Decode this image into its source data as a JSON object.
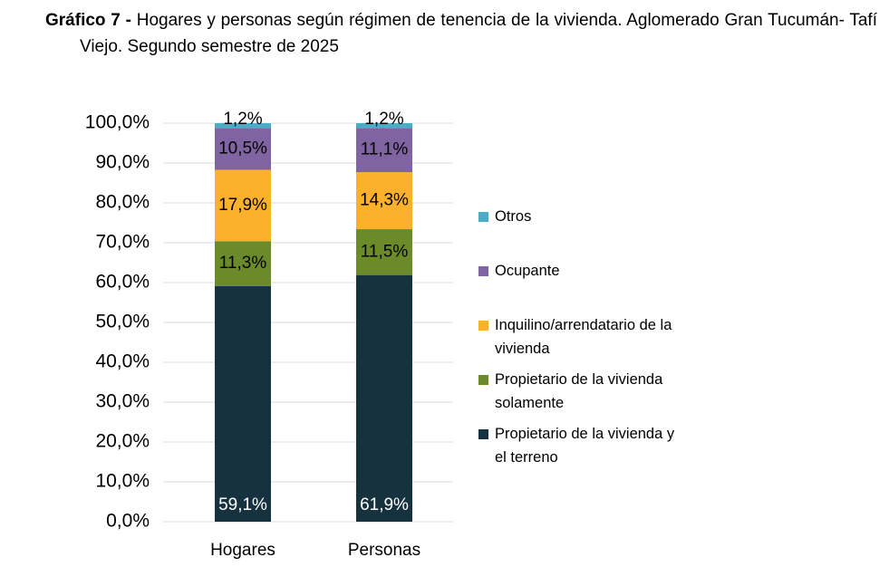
{
  "chart_data": {
    "type": "stacked_bar",
    "figure_label": "Gráfico 7 -",
    "title": "Hogares y personas según régimen de tenencia de la vivienda. Aglomerado Gran Tucumán- Tafí Viejo. Segundo semestre de 2025",
    "categories": [
      "Hogares",
      "Personas"
    ],
    "ylim": [
      0,
      100
    ],
    "yticks": [
      {
        "value": 0,
        "label": "0,0%"
      },
      {
        "value": 10,
        "label": "10,0%"
      },
      {
        "value": 20,
        "label": "20,0%"
      },
      {
        "value": 30,
        "label": "30,0%"
      },
      {
        "value": 40,
        "label": "40,0%"
      },
      {
        "value": 50,
        "label": "50,0%"
      },
      {
        "value": 60,
        "label": "60,0%"
      },
      {
        "value": 70,
        "label": "70,0%"
      },
      {
        "value": 80,
        "label": "80,0%"
      },
      {
        "value": 90,
        "label": "90,0%"
      },
      {
        "value": 100,
        "label": "100,0%"
      }
    ],
    "grid": true,
    "legend": "right",
    "series": [
      {
        "name": "Propietario de la vivienda y el terreno",
        "color": "#17323f",
        "values": [
          59.1,
          61.9
        ],
        "value_labels": [
          "59,1%",
          "61,9%"
        ]
      },
      {
        "name": "Propietario de la vivienda solamente",
        "color": "#6b8b2b",
        "values": [
          11.3,
          11.5
        ],
        "value_labels": [
          "11,3%",
          "11,5%"
        ]
      },
      {
        "name": "Inquilino/arrendatario de la vivienda",
        "color": "#fbb12b",
        "values": [
          17.9,
          14.3
        ],
        "value_labels": [
          "17,9%",
          "14,3%"
        ]
      },
      {
        "name": "Ocupante",
        "color": "#8064a2",
        "values": [
          10.5,
          11.1
        ],
        "value_labels": [
          "10,5%",
          "11,1%"
        ]
      },
      {
        "name": "Otros",
        "color": "#4bacc6",
        "values": [
          1.2,
          1.2
        ],
        "value_labels": [
          "1,2%",
          "1,2%"
        ]
      }
    ]
  }
}
